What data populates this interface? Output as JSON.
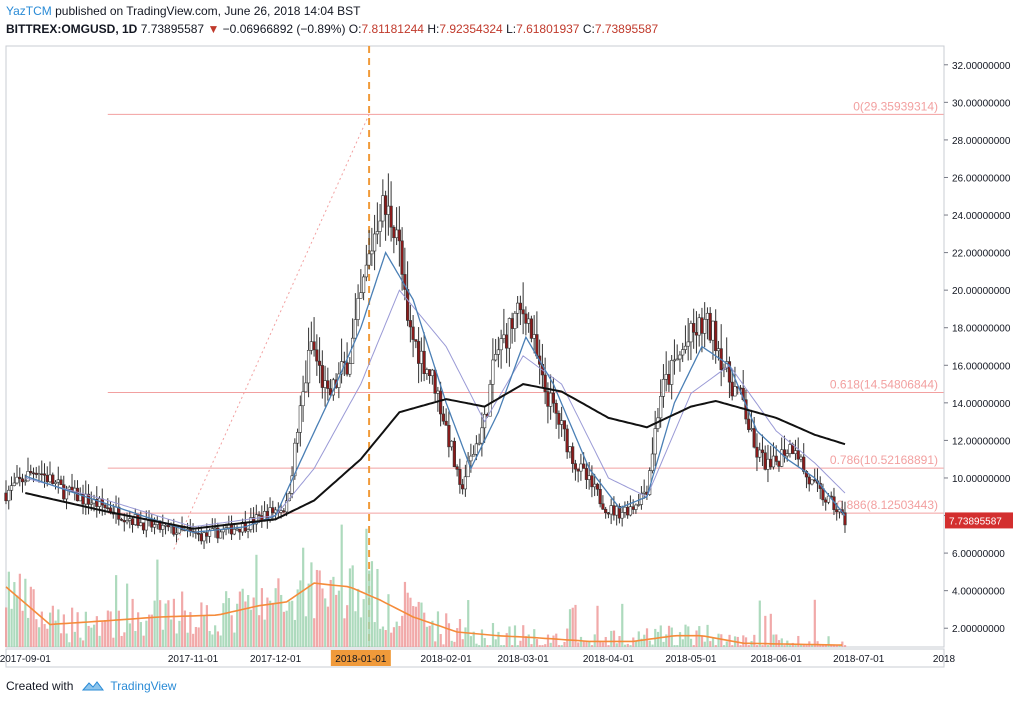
{
  "header": {
    "author": "YazTCM",
    "publish_text": "published on TradingView.com, June 26, 2018 14:04 BST",
    "symbol": "BITTREX:OMGUSD, 1D",
    "last": "7.73895587",
    "change": "−0.06966892 (−0.89%)",
    "o_label": "O:",
    "o": "7.81181244",
    "h_label": "H:",
    "h": "7.92354324",
    "l_label": "L:",
    "l": "7.61801937",
    "c_label": "C:",
    "c": "7.73895587"
  },
  "footer": {
    "created_with": "Created with",
    "brand": "TradingView"
  },
  "colors": {
    "up": "#9fd3b1",
    "down": "#ef9a9a",
    "candle": "#333333",
    "ma_fast": "#4a7fb5",
    "ma_mid": "#9a9ad6",
    "ma_slow": "#111111",
    "volume_ma": "#f58b3a",
    "fib": "#f2a0a0",
    "price_tag": "#d32f2f",
    "vline": "#f09a3a"
  },
  "chart_data": {
    "type": "candlestick",
    "title": "",
    "ylim": [
      1.0,
      33.0
    ],
    "yticks": [
      "2.00000000",
      "4.00000000",
      "6.00000000",
      "8.00000000",
      "10.00000000",
      "12.00000000",
      "14.00000000",
      "16.00000000",
      "18.00000000",
      "20.00000000",
      "22.00000000",
      "24.00000000",
      "26.00000000",
      "28.00000000",
      "30.00000000",
      "32.00000000"
    ],
    "xticks": [
      {
        "label": "2017-09-01",
        "date": "2017-09-01"
      },
      {
        "label": "2017-11-01",
        "date": "2017-11-01"
      },
      {
        "label": "2017-12-01",
        "date": "2017-12-01"
      },
      {
        "label": "2018-01-01",
        "date": "2018-01-01",
        "highlight": true
      },
      {
        "label": "2018-02-01",
        "date": "2018-02-01"
      },
      {
        "label": "2018-03-01",
        "date": "2018-03-01"
      },
      {
        "label": "2018-04-01",
        "date": "2018-04-01"
      },
      {
        "label": "2018-05-01",
        "date": "2018-05-01"
      },
      {
        "label": "2018-06-01",
        "date": "2018-06-01"
      },
      {
        "label": "2018-07-01",
        "date": "2018-07-01"
      },
      {
        "label": "2018",
        "date": "2018-08-01"
      }
    ],
    "date_range": [
      "2017-09-01",
      "2018-06-26"
    ],
    "view_range": [
      "2017-08-25",
      "2018-08-01"
    ],
    "price_anchors": [
      [
        "2017-08-25",
        9.2
      ],
      [
        "2017-09-05",
        10.5
      ],
      [
        "2017-09-15",
        9.3
      ],
      [
        "2017-10-01",
        8.4
      ],
      [
        "2017-10-15",
        7.5
      ],
      [
        "2017-10-25",
        7.2
      ],
      [
        "2017-11-05",
        6.9
      ],
      [
        "2017-11-20",
        7.5
      ],
      [
        "2017-12-01",
        8.3
      ],
      [
        "2017-12-05",
        8.5
      ],
      [
        "2017-12-10",
        13.5
      ],
      [
        "2017-12-14",
        17.2
      ],
      [
        "2017-12-20",
        14.2
      ],
      [
        "2017-12-28",
        16.5
      ],
      [
        "2018-01-03",
        21.0
      ],
      [
        "2018-01-08",
        24.5
      ],
      [
        "2018-01-14",
        23.5
      ],
      [
        "2018-01-18",
        18.0
      ],
      [
        "2018-01-22",
        16.8
      ],
      [
        "2018-01-28",
        15.0
      ],
      [
        "2018-02-03",
        11.5
      ],
      [
        "2018-02-06",
        9.3
      ],
      [
        "2018-02-10",
        11.0
      ],
      [
        "2018-02-15",
        13.0
      ],
      [
        "2018-02-19",
        16.5
      ],
      [
        "2018-02-26",
        18.5
      ],
      [
        "2018-03-02",
        19.0
      ],
      [
        "2018-03-08",
        15.0
      ],
      [
        "2018-03-14",
        13.0
      ],
      [
        "2018-03-20",
        10.8
      ],
      [
        "2018-03-26",
        9.5
      ],
      [
        "2018-04-01",
        8.3
      ],
      [
        "2018-04-05",
        8.2
      ],
      [
        "2018-04-10",
        8.5
      ],
      [
        "2018-04-15",
        9.5
      ],
      [
        "2018-04-20",
        14.5
      ],
      [
        "2018-04-25",
        16.0
      ],
      [
        "2018-05-01",
        17.5
      ],
      [
        "2018-05-06",
        18.2
      ],
      [
        "2018-05-10",
        17.5
      ],
      [
        "2018-05-14",
        15.5
      ],
      [
        "2018-05-20",
        14.0
      ],
      [
        "2018-05-24",
        11.5
      ],
      [
        "2018-05-30",
        10.5
      ],
      [
        "2018-06-04",
        11.5
      ],
      [
        "2018-06-08",
        11.8
      ],
      [
        "2018-06-12",
        10.0
      ],
      [
        "2018-06-18",
        9.0
      ],
      [
        "2018-06-22",
        8.5
      ],
      [
        "2018-06-26",
        7.74
      ]
    ],
    "volume_anchors": [
      [
        "2017-08-25",
        4.2
      ],
      [
        "2017-09-10",
        2.2
      ],
      [
        "2017-10-01",
        2.4
      ],
      [
        "2017-10-20",
        2.6
      ],
      [
        "2017-11-10",
        2.7
      ],
      [
        "2017-11-25",
        3.2
      ],
      [
        "2017-12-05",
        3.4
      ],
      [
        "2017-12-15",
        4.4
      ],
      [
        "2017-12-28",
        4.2
      ],
      [
        "2018-01-08",
        3.5
      ],
      [
        "2018-01-20",
        2.6
      ],
      [
        "2018-02-05",
        1.8
      ],
      [
        "2018-02-20",
        1.6
      ],
      [
        "2018-03-05",
        1.5
      ],
      [
        "2018-03-25",
        1.3
      ],
      [
        "2018-04-10",
        1.3
      ],
      [
        "2018-04-25",
        1.6
      ],
      [
        "2018-05-05",
        1.6
      ],
      [
        "2018-05-20",
        1.2
      ],
      [
        "2018-06-26",
        1.1
      ]
    ],
    "ma_fast_anchors": [
      [
        "2017-09-01",
        10.1
      ],
      [
        "2017-10-01",
        8.6
      ],
      [
        "2017-11-01",
        7.1
      ],
      [
        "2017-11-20",
        7.4
      ],
      [
        "2017-12-01",
        8.0
      ],
      [
        "2017-12-12",
        11.5
      ],
      [
        "2017-12-20",
        14.0
      ],
      [
        "2018-01-01",
        18.0
      ],
      [
        "2018-01-10",
        22.0
      ],
      [
        "2018-01-20",
        19.5
      ],
      [
        "2018-02-01",
        14.0
      ],
      [
        "2018-02-10",
        10.5
      ],
      [
        "2018-02-20",
        13.5
      ],
      [
        "2018-03-02",
        17.5
      ],
      [
        "2018-03-12",
        15.0
      ],
      [
        "2018-03-25",
        10.5
      ],
      [
        "2018-04-05",
        8.4
      ],
      [
        "2018-04-15",
        9.0
      ],
      [
        "2018-04-25",
        14.0
      ],
      [
        "2018-05-05",
        17.0
      ],
      [
        "2018-05-15",
        16.0
      ],
      [
        "2018-05-25",
        12.5
      ],
      [
        "2018-06-05",
        11.0
      ],
      [
        "2018-06-15",
        10.0
      ],
      [
        "2018-06-26",
        8.0
      ]
    ],
    "ma_mid_anchors": [
      [
        "2017-09-01",
        10.0
      ],
      [
        "2017-10-01",
        8.8
      ],
      [
        "2017-11-01",
        7.4
      ],
      [
        "2017-12-01",
        8.0
      ],
      [
        "2017-12-15",
        10.5
      ],
      [
        "2018-01-01",
        15.0
      ],
      [
        "2018-01-15",
        20.0
      ],
      [
        "2018-02-01",
        17.0
      ],
      [
        "2018-02-15",
        13.0
      ],
      [
        "2018-03-01",
        16.5
      ],
      [
        "2018-03-15",
        15.0
      ],
      [
        "2018-04-01",
        10.0
      ],
      [
        "2018-04-15",
        9.0
      ],
      [
        "2018-05-01",
        14.5
      ],
      [
        "2018-05-15",
        16.0
      ],
      [
        "2018-06-01",
        12.5
      ],
      [
        "2018-06-15",
        10.8
      ],
      [
        "2018-06-26",
        9.2
      ]
    ],
    "ma_slow_anchors": [
      [
        "2017-09-01",
        9.2
      ],
      [
        "2017-10-01",
        8.2
      ],
      [
        "2017-11-01",
        7.3
      ],
      [
        "2017-12-01",
        7.8
      ],
      [
        "2017-12-15",
        8.8
      ],
      [
        "2018-01-01",
        11.0
      ],
      [
        "2018-01-15",
        13.5
      ],
      [
        "2018-02-01",
        14.2
      ],
      [
        "2018-02-15",
        13.8
      ],
      [
        "2018-03-01",
        15.0
      ],
      [
        "2018-03-15",
        14.6
      ],
      [
        "2018-04-01",
        13.2
      ],
      [
        "2018-04-15",
        12.7
      ],
      [
        "2018-05-01",
        13.8
      ],
      [
        "2018-05-10",
        14.1
      ],
      [
        "2018-06-01",
        13.2
      ],
      [
        "2018-06-15",
        12.3
      ],
      [
        "2018-06-26",
        11.8
      ]
    ],
    "fib_levels": [
      {
        "label": "0(29.35939314)",
        "value": 29.35939314
      },
      {
        "label": "0.618(14.54806844)",
        "value": 14.54806844
      },
      {
        "label": "0.786(10.52168891)",
        "value": 10.52168891
      },
      {
        "label": "0.886(8.12503443)",
        "value": 8.12503443
      }
    ],
    "fib_trend": {
      "from": [
        "2017-10-25",
        6.2
      ],
      "to": [
        "2018-01-04",
        29.36
      ]
    },
    "event_date": "2018-01-04",
    "last_price_label": "7.73895587",
    "last_price": 7.73895587
  }
}
